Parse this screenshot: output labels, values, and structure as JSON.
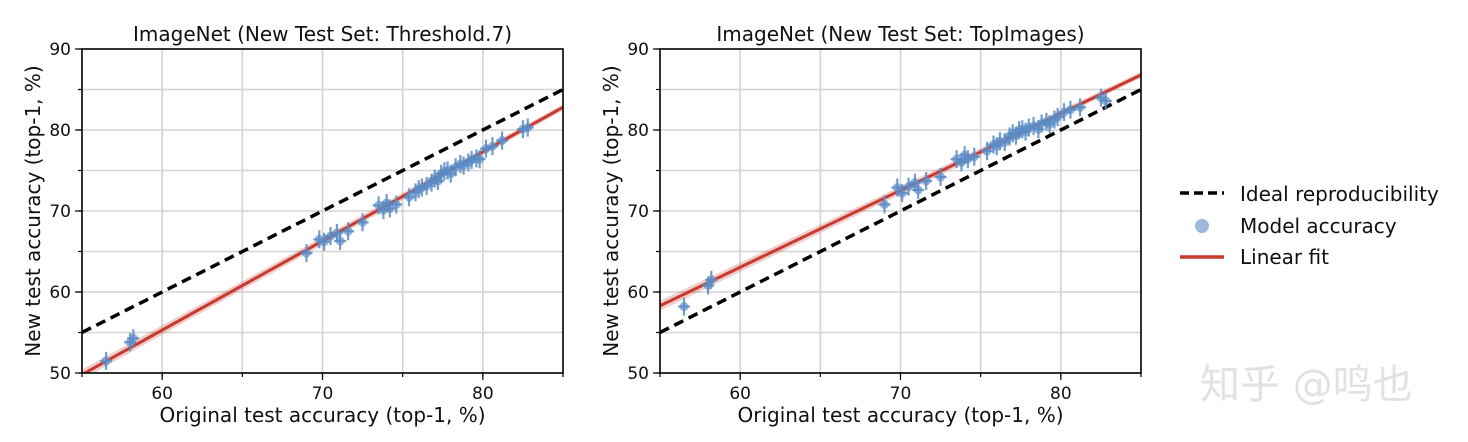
{
  "colors": {
    "ideal": "#000000",
    "model": "#5b8cc4",
    "fit": "#c8392f",
    "grid": "#d3d3d3",
    "watermark": "#e6e6e6"
  },
  "legend": {
    "placement": "right",
    "entries": [
      {
        "label": "Ideal reproducibility",
        "style": "dashed-line",
        "color": "#000000"
      },
      {
        "label": "Model accuracy",
        "style": "marker",
        "color": "#5b8cc4"
      },
      {
        "label": "Linear fit",
        "style": "solid-line",
        "color": "#c8392f"
      }
    ]
  },
  "watermark": {
    "text": "知乎 @鸣也"
  },
  "chart_data": [
    {
      "type": "scatter",
      "title": "ImageNet (New Test Set: Threshold.7)",
      "xlabel": "Original test accuracy (top-1, %)",
      "ylabel": "New test accuracy (top-1, %)",
      "xlim": [
        55,
        85
      ],
      "ylim": [
        50,
        90
      ],
      "xticks": [
        60,
        70,
        80
      ],
      "yticks": [
        50,
        60,
        70,
        80,
        90
      ],
      "grid": true,
      "ideal_line": {
        "slope": 1,
        "intercept": 0
      },
      "linear_fit": {
        "points": [
          [
            55,
            49.8
          ],
          [
            85,
            82.8
          ]
        ]
      },
      "points": [
        [
          56.5,
          51.5
        ],
        [
          58.0,
          53.8
        ],
        [
          58.2,
          54.3
        ],
        [
          69.0,
          64.8
        ],
        [
          69.8,
          66.5
        ],
        [
          70.1,
          66.2
        ],
        [
          70.5,
          66.9
        ],
        [
          70.9,
          67.3
        ],
        [
          71.1,
          66.3
        ],
        [
          71.6,
          67.5
        ],
        [
          72.5,
          68.6
        ],
        [
          73.5,
          70.7
        ],
        [
          73.8,
          70.1
        ],
        [
          74.0,
          71.0
        ],
        [
          74.2,
          70.3
        ],
        [
          74.6,
          70.8
        ],
        [
          75.4,
          71.7
        ],
        [
          75.8,
          72.3
        ],
        [
          76.0,
          72.7
        ],
        [
          76.2,
          72.9
        ],
        [
          76.5,
          73.1
        ],
        [
          76.8,
          73.5
        ],
        [
          77.0,
          74.0
        ],
        [
          77.2,
          73.7
        ],
        [
          77.4,
          74.6
        ],
        [
          77.6,
          74.9
        ],
        [
          77.8,
          75.0
        ],
        [
          78.0,
          74.6
        ],
        [
          78.3,
          75.4
        ],
        [
          78.6,
          75.8
        ],
        [
          78.8,
          75.6
        ],
        [
          79.1,
          76.0
        ],
        [
          79.3,
          76.3
        ],
        [
          79.6,
          76.5
        ],
        [
          79.8,
          76.4
        ],
        [
          80.2,
          77.7
        ],
        [
          80.6,
          78.0
        ],
        [
          81.2,
          78.7
        ],
        [
          82.5,
          80.1
        ],
        [
          82.8,
          80.3
        ]
      ]
    },
    {
      "type": "scatter",
      "title": "ImageNet (New Test Set: TopImages)",
      "xlabel": "Original test accuracy (top-1, %)",
      "ylabel": "New test accuracy (top-1, %)",
      "xlim": [
        55,
        85
      ],
      "ylim": [
        50,
        90
      ],
      "xticks": [
        60,
        70,
        80
      ],
      "yticks": [
        50,
        60,
        70,
        80,
        90
      ],
      "grid": true,
      "ideal_line": {
        "slope": 1,
        "intercept": 0
      },
      "linear_fit": {
        "points": [
          [
            55,
            58.3
          ],
          [
            85,
            86.8
          ]
        ]
      },
      "points": [
        [
          56.5,
          58.2
        ],
        [
          58.0,
          60.8
        ],
        [
          58.2,
          61.5
        ],
        [
          69.0,
          70.8
        ],
        [
          69.8,
          72.9
        ],
        [
          70.1,
          72.2
        ],
        [
          70.5,
          73.0
        ],
        [
          70.9,
          73.5
        ],
        [
          71.1,
          72.6
        ],
        [
          71.6,
          73.7
        ],
        [
          72.5,
          74.2
        ],
        [
          73.5,
          76.4
        ],
        [
          73.8,
          76.0
        ],
        [
          74.0,
          76.9
        ],
        [
          74.2,
          76.4
        ],
        [
          74.6,
          76.7
        ],
        [
          75.4,
          77.4
        ],
        [
          75.8,
          78.2
        ],
        [
          76.0,
          78.0
        ],
        [
          76.2,
          78.6
        ],
        [
          76.5,
          78.5
        ],
        [
          76.8,
          79.2
        ],
        [
          77.0,
          79.6
        ],
        [
          77.2,
          79.3
        ],
        [
          77.4,
          80.0
        ],
        [
          77.6,
          80.1
        ],
        [
          77.8,
          79.8
        ],
        [
          78.0,
          80.3
        ],
        [
          78.3,
          80.5
        ],
        [
          78.6,
          80.1
        ],
        [
          78.8,
          80.8
        ],
        [
          79.1,
          81.0
        ],
        [
          79.3,
          80.7
        ],
        [
          79.6,
          81.3
        ],
        [
          79.8,
          81.6
        ],
        [
          80.2,
          82.2
        ],
        [
          80.6,
          82.5
        ],
        [
          81.2,
          82.8
        ],
        [
          82.5,
          84.0
        ],
        [
          82.8,
          83.6
        ]
      ]
    }
  ]
}
